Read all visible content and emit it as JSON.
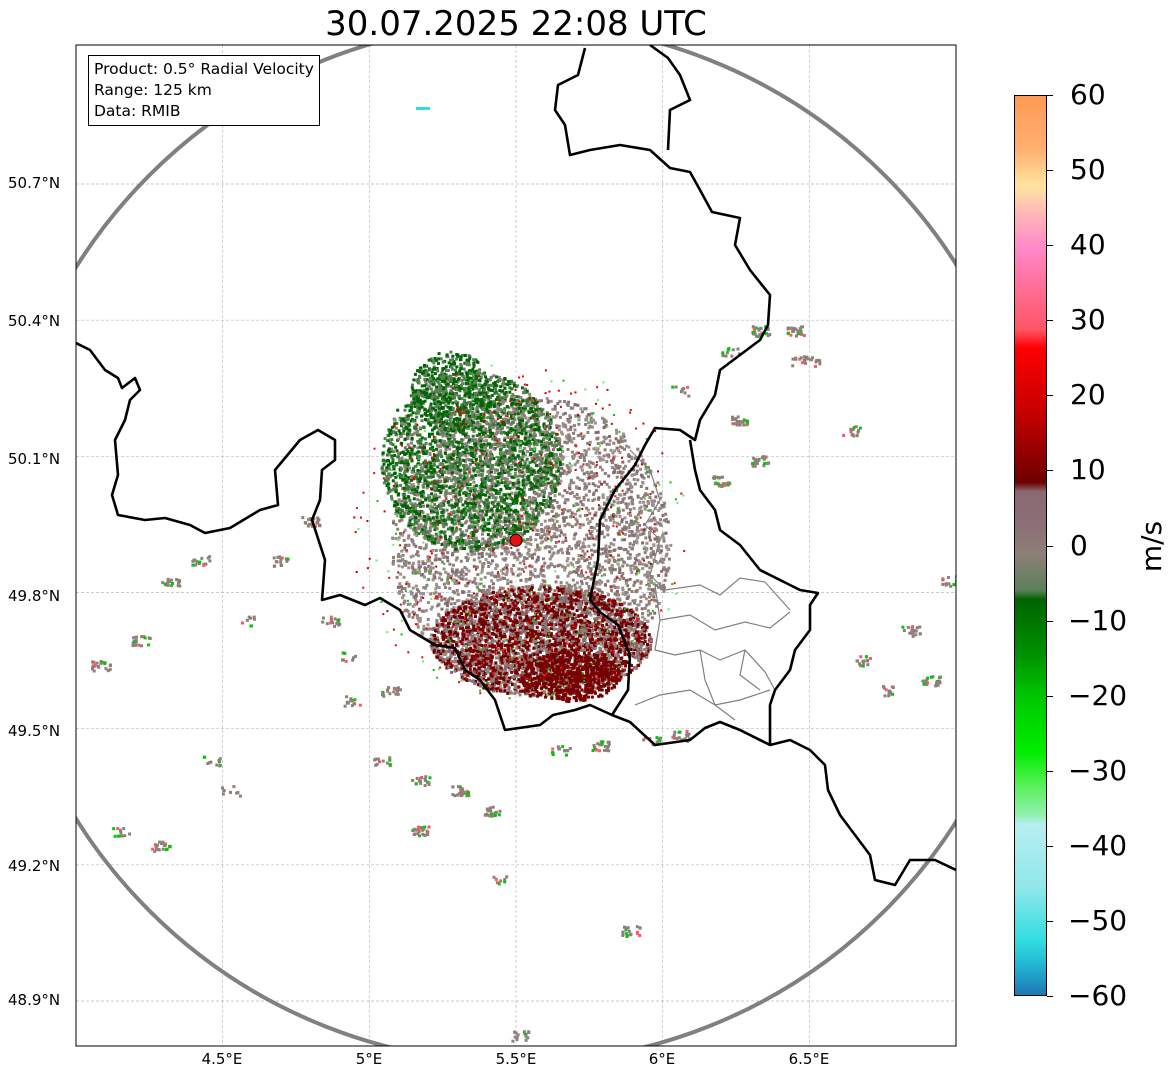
{
  "title": "30.07.2025 22:08 UTC",
  "info": {
    "product": "Product: 0.5° Radial Velocity",
    "range": "Range: 125 km",
    "data": "Data: RMIB"
  },
  "lat_labels": [
    "50.7°N",
    "50.4°N",
    "50.1°N",
    "49.8°N",
    "49.5°N",
    "49.2°N",
    "48.9°N"
  ],
  "lat_values": [
    50.7,
    50.4,
    50.1,
    49.8,
    49.5,
    49.2,
    48.9
  ],
  "lon_labels": [
    "4.5°E",
    "5°E",
    "5.5°E",
    "6°E",
    "6.5°E"
  ],
  "lon_values": [
    4.5,
    5.0,
    5.5,
    6.0,
    6.5
  ],
  "extent": {
    "lon_min": 4.0,
    "lon_max": 7.0,
    "lat_min": 48.8,
    "lat_max": 51.0
  },
  "radar_site": {
    "lon": 5.5,
    "lat": 49.915
  },
  "colorbar": {
    "unit": "m/s",
    "min": -60,
    "max": 60,
    "tick_labels": [
      "60",
      "50",
      "40",
      "30",
      "20",
      "10",
      "0",
      "−10",
      "−20",
      "−30",
      "−40",
      "−50",
      "−60"
    ],
    "tick_values": [
      60,
      50,
      40,
      30,
      20,
      10,
      0,
      -10,
      -20,
      -30,
      -40,
      -50,
      -60
    ],
    "colors": {
      "orange": "#ff9955",
      "cream": "#ffe4a0",
      "pink": "#ff88c8",
      "rose": "#ff5566",
      "red": "#ff0000",
      "darkred": "#6e0000",
      "mauve": "#8a6872",
      "gray": "#8c8078",
      "sage": "#5a8058",
      "darkgreen": "#006400",
      "green": "#00c800",
      "lightgreen": "#60f060",
      "paleblue": "#b8eef0",
      "cyan": "#30dde0",
      "blue": "#1f77b4"
    }
  }
}
